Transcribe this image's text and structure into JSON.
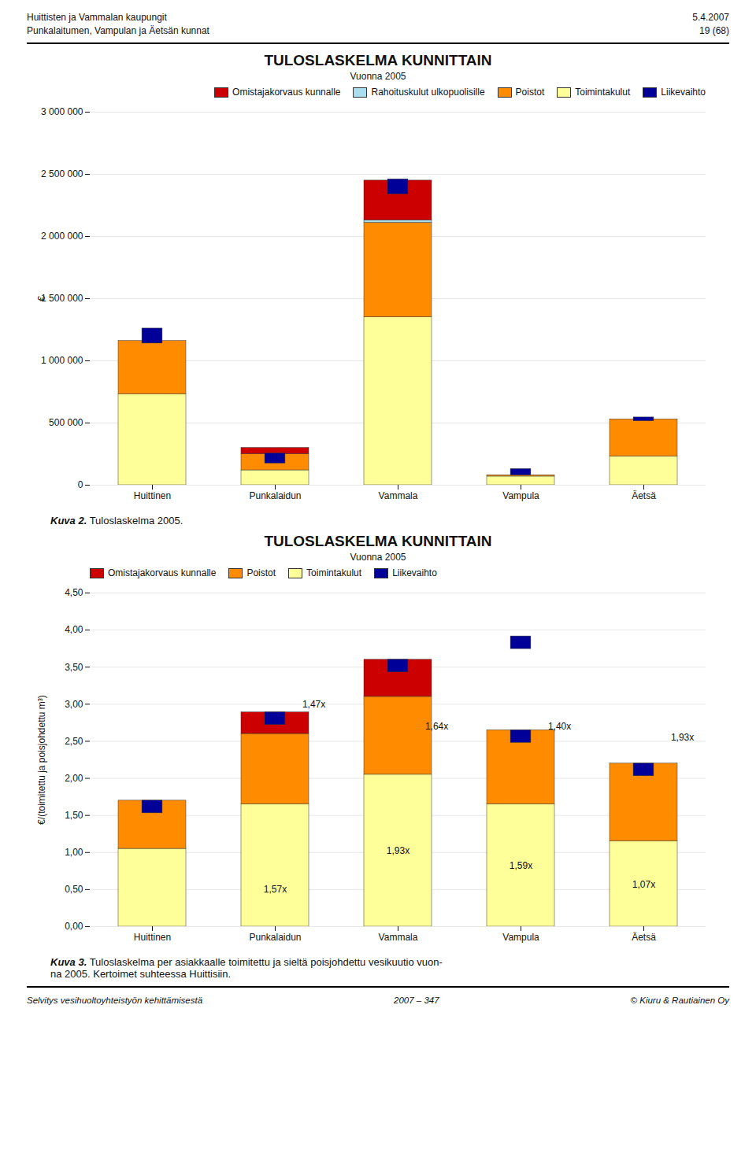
{
  "page": {
    "header_left": [
      "Huittisten ja Vammalan kaupungit",
      "Punkalaitumen, Vampulan ja Äetsän kunnat"
    ],
    "header_right": [
      "5.4.2007",
      "19 (68)"
    ],
    "footer": [
      "Selvitys vesihuoltoyhteistyön kehittämisestä",
      "2007 – 347",
      "© Kiuru & Rautiainen Oy"
    ]
  },
  "chart_data": [
    {
      "type": "bar",
      "stacked": true,
      "grid": true,
      "legend": "upper right",
      "title": "TULOSLASKELMA KUNNITTAIN",
      "subtitle": "Vuonna 2005",
      "caption": {
        "bold": "Kuva 2.",
        "text": " Tuloslaskelma 2005."
      },
      "categories": [
        "Huittinen",
        "Punkalaidun",
        "Vammala",
        "Vampula",
        "Äetsä"
      ],
      "ylabel": "€",
      "ylim": [
        0,
        3000000
      ],
      "yticks": [
        0,
        {
          "value": 500000,
          "label": "500 000"
        },
        {
          "value": 1000000,
          "label": "1 000 000"
        },
        {
          "value": 1500000,
          "label": "1 500 000"
        },
        {
          "value": 2000000,
          "label": "2 000 000"
        },
        {
          "value": 2500000,
          "label": "2 500 000"
        },
        {
          "value": 3000000,
          "label": "3 000 000"
        }
      ],
      "series": [
        {
          "name": "Omistajakorvaus kunnalle",
          "color": "#CC0000",
          "values": [
            0,
            50000,
            320000,
            0,
            0
          ]
        },
        {
          "name": "Rahoituskulut ulkopuolisille",
          "color": "#AADDEE",
          "values": [
            0,
            0,
            20000,
            0,
            0
          ]
        },
        {
          "name": "Poistot",
          "color": "#FF8C00",
          "values": [
            430000,
            130000,
            760000,
            10000,
            300000
          ]
        },
        {
          "name": "Toimintakulut",
          "color": "#FFFF99",
          "values": [
            730000,
            120000,
            1350000,
            70000,
            230000
          ]
        },
        {
          "name": "Liikevaihto",
          "color": "#000099",
          "type": "floating",
          "values": [
            1260000,
            255000,
            2460000,
            130000,
            545000
          ],
          "heights": [
            120000,
            80000,
            120000,
            50000,
            30000
          ]
        }
      ]
    },
    {
      "type": "bar",
      "stacked": true,
      "grid": true,
      "legend": "upper left",
      "title": "TULOSLASKELMA KUNNITTAIN",
      "subtitle": "Vuonna 2005",
      "caption": {
        "bold": "Kuva 3.",
        "text": " Tuloslaskelma per asiakkaalle toimitettu ja sieltä poisjohdettu vesikuutio vuon-\nna 2005. Kertoimet suhteessa Huittisiin."
      },
      "categories": [
        "Huittinen",
        "Punkalaidun",
        "Vammala",
        "Vampula",
        "Äetsä"
      ],
      "ylabel": "€/(toimitettu ja poisjohdettu m³)",
      "ylim": [
        0,
        4.5
      ],
      "yticks": [
        {
          "value": 0,
          "label": "0,00"
        },
        {
          "value": 0.5,
          "label": "0,50"
        },
        {
          "value": 1.0,
          "label": "1,00"
        },
        {
          "value": 1.5,
          "label": "1,50"
        },
        {
          "value": 2.0,
          "label": "2,00"
        },
        {
          "value": 2.5,
          "label": "2,50"
        },
        {
          "value": 3.0,
          "label": "3,00"
        },
        {
          "value": 3.5,
          "label": "3,50"
        },
        {
          "value": 4.0,
          "label": "4,00"
        },
        {
          "value": 4.5,
          "label": "4,50"
        }
      ],
      "series": [
        {
          "name": "Omistajakorvaus kunnalle",
          "color": "#CC0000",
          "values": [
            0.0,
            0.29,
            0.5,
            0.0,
            0.0
          ]
        },
        {
          "name": "Poistot",
          "color": "#FF8C00",
          "values": [
            0.65,
            0.95,
            1.05,
            1.0,
            1.05
          ]
        },
        {
          "name": "Toimintakulut",
          "color": "#FFFF99",
          "values": [
            1.05,
            1.65,
            2.05,
            1.65,
            1.15
          ]
        },
        {
          "name": "Liikevaihto",
          "color": "#000099",
          "type": "floating",
          "values": [
            1.7,
            2.89,
            3.6,
            2.65,
            2.2
          ],
          "heights": [
            0.17,
            0.17,
            0.17,
            0.17,
            0.17
          ],
          "extra": [
            {
              "category": "Vampula",
              "center": 3.83,
              "height": 0.17
            }
          ]
        }
      ],
      "annotations": [
        {
          "category": "Punkalaidun",
          "y": 3.0,
          "text": "1,47x",
          "position": "right"
        },
        {
          "category": "Vammala",
          "y": 2.7,
          "text": "1,64x",
          "position": "right"
        },
        {
          "category": "Vampula",
          "y": 2.7,
          "text": "1,40x",
          "position": "right"
        },
        {
          "category": "Äetsä",
          "y": 2.55,
          "text": "1,93x",
          "position": "right"
        },
        {
          "category": "Punkalaidun",
          "y": 0.5,
          "text": "1,57x",
          "position": "center"
        },
        {
          "category": "Vammala",
          "y": 1.02,
          "text": "1,93x",
          "position": "center"
        },
        {
          "category": "Vampula",
          "y": 0.82,
          "text": "1,59x",
          "position": "center"
        },
        {
          "category": "Äetsä",
          "y": 0.57,
          "text": "1,07x",
          "position": "center"
        }
      ]
    }
  ]
}
